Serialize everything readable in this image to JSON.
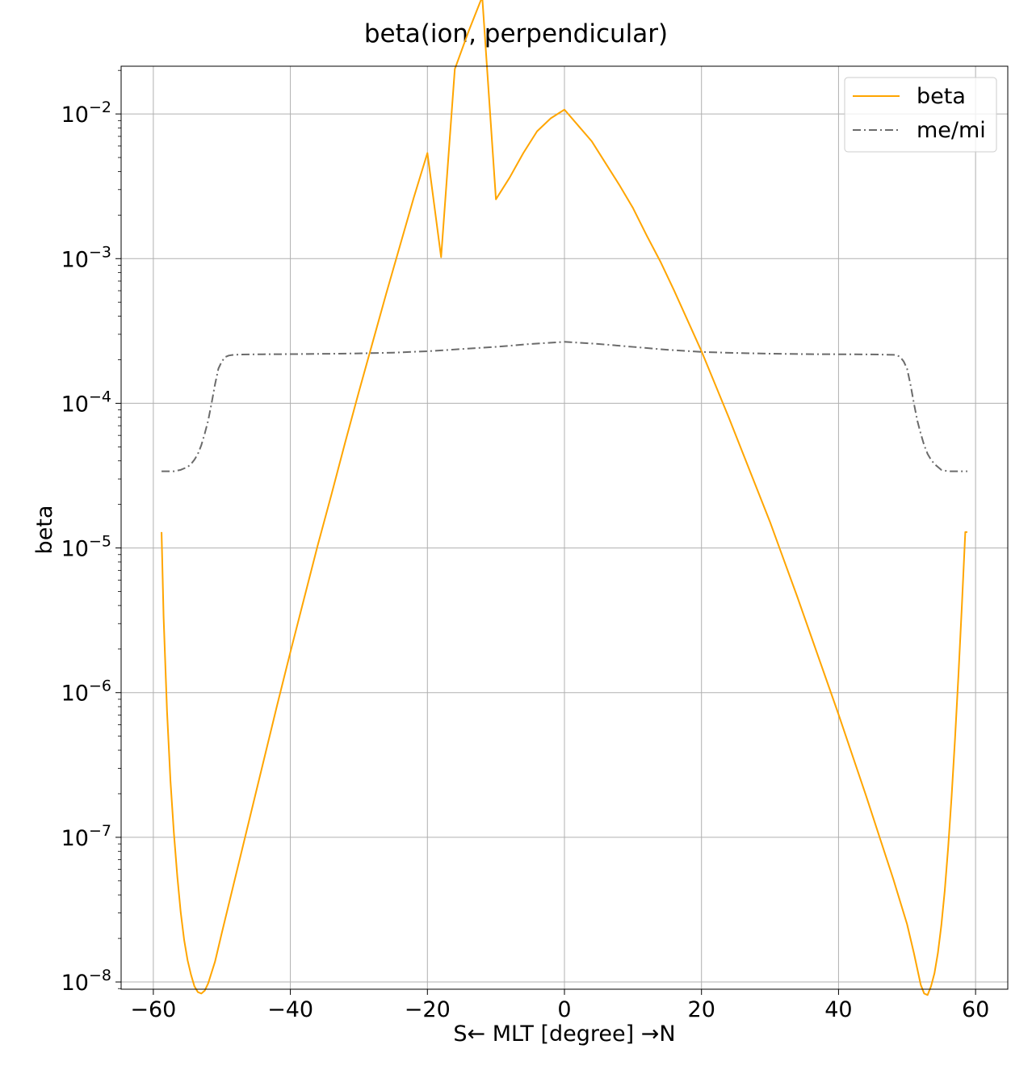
{
  "chart_data": {
    "type": "line",
    "title": "beta(ion, perpendicular)",
    "xlabel": "S← MLT [degree] →N",
    "ylabel": "beta",
    "xlim": [
      -64.7,
      64.7
    ],
    "ylim_log10": [
      -8.05,
      -1.67
    ],
    "yscale": "log",
    "grid": true,
    "legend_position": "upper right",
    "x_ticks": [
      -60,
      -40,
      -20,
      0,
      20,
      40,
      60
    ],
    "x_tick_labels": [
      "−60",
      "−40",
      "−20",
      "0",
      "20",
      "40",
      "60"
    ],
    "y_ticks_exp": [
      -8,
      -7,
      -6,
      -5,
      -4,
      -3,
      -2
    ],
    "series": [
      {
        "name": "beta",
        "color": "#ffa500",
        "style": "solid",
        "x": [
          -58.8,
          -58.5,
          -58.0,
          -57.5,
          -57.0,
          -56.5,
          -56.0,
          -55.5,
          -55.0,
          -54.5,
          -54.0,
          -53.5,
          -53.0,
          -52.5,
          -52.0,
          -51.0,
          -50.0,
          -48.0,
          -46.0,
          -44.0,
          -42.0,
          -40.0,
          -38.0,
          -36.0,
          -34.0,
          -32.0,
          -30.0,
          -28.0,
          -26.0,
          -24.0,
          -22.0,
          -20.0,
          -18.0,
          -16.0,
          -14.0,
          -12.0,
          -10.0,
          -8.0,
          -6.0,
          -4.0,
          -2.0,
          0.0,
          2.0,
          4.0,
          6.0,
          8.0,
          10.0,
          12.0,
          14.0,
          16.0,
          18.0,
          20.0,
          22.0,
          24.0,
          26.0,
          28.0,
          30.0,
          32.0,
          34.0,
          36.0,
          38.0,
          40.0,
          42.0,
          44.0,
          46.0,
          48.0,
          50.0,
          51.0,
          52.0,
          52.5,
          53.0,
          53.5,
          54.0,
          54.5,
          55.0,
          55.5,
          56.0,
          56.5,
          57.0,
          57.5,
          58.0,
          58.5,
          58.8
        ],
        "y_log10": [
          -4.89,
          -5.48,
          -6.13,
          -6.61,
          -6.97,
          -7.27,
          -7.52,
          -7.71,
          -7.85,
          -7.95,
          -8.03,
          -8.07,
          -8.08,
          -8.06,
          -8.01,
          -7.86,
          -7.66,
          -7.27,
          -6.88,
          -6.49,
          -6.1,
          -5.72,
          -5.35,
          -4.98,
          -4.63,
          -4.27,
          -3.92,
          -3.58,
          -3.24,
          -2.91,
          -2.58,
          -2.27,
          -2.99,
          -1.69,
          -1.43,
          -1.19,
          -2.59,
          -2.44,
          -2.27,
          -2.12,
          -2.03,
          -1.97,
          -2.08,
          -2.19,
          -2.34,
          -2.49,
          -2.65,
          -2.84,
          -3.02,
          -3.22,
          -3.43,
          -3.64,
          -3.87,
          -4.1,
          -4.34,
          -4.58,
          -4.82,
          -5.08,
          -5.34,
          -5.61,
          -5.88,
          -6.15,
          -6.43,
          -6.71,
          -7.0,
          -7.29,
          -7.6,
          -7.8,
          -8.02,
          -8.08,
          -8.09,
          -8.03,
          -7.94,
          -7.8,
          -7.61,
          -7.37,
          -7.07,
          -6.72,
          -6.32,
          -5.88,
          -5.4,
          -4.89,
          -4.89
        ]
      },
      {
        "name": "me/mi",
        "color": "#6b6b6b",
        "style": "dashdot",
        "x": [
          -58.8,
          -57.0,
          -56.0,
          -55.0,
          -54.5,
          -54.0,
          -53.5,
          -53.0,
          -52.5,
          -52.0,
          -51.5,
          -51.0,
          -50.5,
          -50.0,
          -49.5,
          -49.0,
          -48.5,
          -48.0,
          -47.0,
          -46.0,
          -44.0,
          -40.0,
          -35.0,
          -30.0,
          -25.0,
          -20.0,
          -15.0,
          -10.0,
          -5.0,
          0.0,
          5.0,
          10.0,
          15.0,
          20.0,
          25.0,
          30.0,
          35.0,
          40.0,
          44.0,
          46.0,
          47.0,
          48.0,
          48.5,
          49.0,
          49.5,
          50.0,
          50.5,
          51.0,
          51.5,
          52.0,
          52.5,
          53.0,
          53.5,
          54.0,
          54.5,
          55.0,
          56.0,
          57.0,
          58.8
        ],
        "y_log10": [
          -4.47,
          -4.47,
          -4.46,
          -4.44,
          -4.42,
          -4.39,
          -4.35,
          -4.29,
          -4.21,
          -4.12,
          -4.0,
          -3.87,
          -3.76,
          -3.71,
          -3.68,
          -3.67,
          -3.666,
          -3.664,
          -3.663,
          -3.662,
          -3.661,
          -3.66,
          -3.658,
          -3.655,
          -3.65,
          -3.64,
          -3.625,
          -3.61,
          -3.59,
          -3.575,
          -3.59,
          -3.61,
          -3.63,
          -3.645,
          -3.652,
          -3.657,
          -3.66,
          -3.661,
          -3.662,
          -3.663,
          -3.664,
          -3.665,
          -3.667,
          -3.68,
          -3.71,
          -3.76,
          -3.87,
          -4.0,
          -4.12,
          -4.21,
          -4.29,
          -4.35,
          -4.39,
          -4.42,
          -4.44,
          -4.46,
          -4.47,
          -4.47,
          -4.47
        ]
      }
    ]
  }
}
